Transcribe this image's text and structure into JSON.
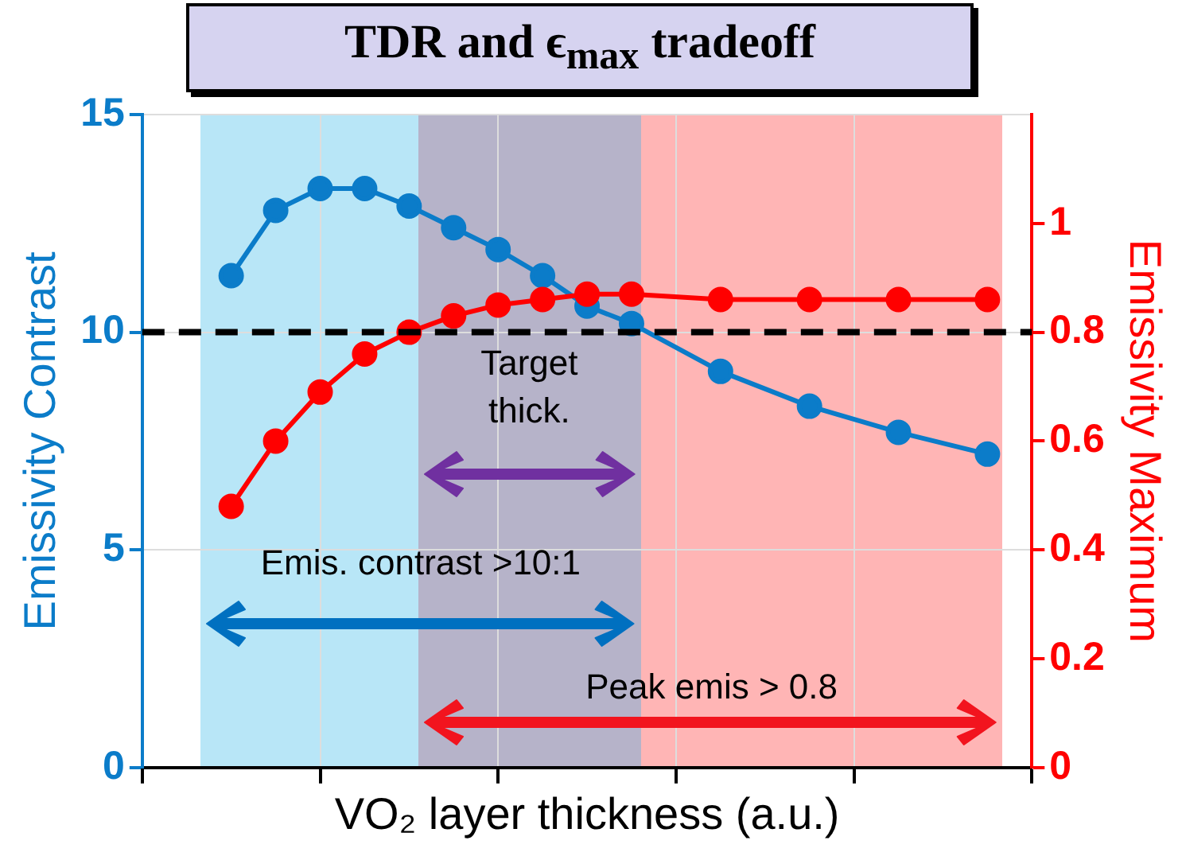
{
  "chart_data": {
    "type": "line",
    "title": "TDR and ϵ$_{max}$ tradeoff",
    "xlabel": "VO₂ layer thickness (a.u.)",
    "ylabel": "Emissivity Contrast",
    "y2label": "Emissivity Maximum",
    "categories": [
      null,
      null,
      null,
      null,
      null,
      null,
      null,
      null,
      null,
      null,
      null,
      null,
      null,
      null,
      null,
      null,
      null,
      null
    ],
    "series": [
      {
        "color": "#0b7cc9",
        "values": [
          11.3,
          12.8,
          13.3,
          13.3,
          12.9,
          12.4,
          11.9,
          11.3,
          10.6,
          10.2,
          null,
          9.1,
          null,
          8.3,
          null,
          7.7,
          null,
          7.2
        ]
      },
      {
        "color": "#ff0000",
        "axis": "y2",
        "values": [
          0.48,
          0.6,
          0.69,
          0.76,
          0.8,
          0.83,
          0.85,
          0.86,
          0.87,
          0.87,
          null,
          0.86,
          null,
          0.86,
          null,
          0.86,
          null,
          0.86
        ]
      }
    ],
    "ylim": [
      0,
      15
    ],
    "yticks": [
      0,
      5,
      10,
      15
    ],
    "y2lim": [
      0,
      1.2
    ],
    "y2ticks": [
      0,
      0.2,
      0.4,
      0.6,
      0.8,
      1
    ],
    "ref_lines": [
      {
        "axis": "y",
        "value": 10,
        "color": "#000000",
        "line_style": "dashed"
      }
    ],
    "annotations": [
      "Emis. contrast >10:1",
      "Peak emis > 0.8",
      "Target thick."
    ],
    "grid": true,
    "legend": false,
    "marker": "circle",
    "line_style": "solid",
    "tick_labels": "y"
  }
}
